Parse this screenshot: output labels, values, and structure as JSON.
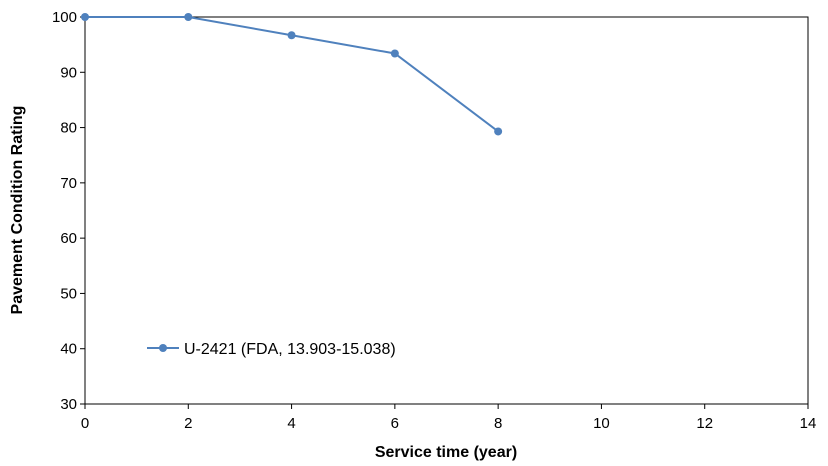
{
  "chart_data": {
    "type": "line",
    "title": "",
    "xlabel": "Service time (year)",
    "ylabel": "Pavement Condition Rating",
    "xlim": [
      0,
      14
    ],
    "ylim": [
      30,
      100
    ],
    "x_ticks": [
      0,
      2,
      4,
      6,
      8,
      10,
      12,
      14
    ],
    "y_ticks": [
      30,
      40,
      50,
      60,
      70,
      80,
      90,
      100
    ],
    "grid": false,
    "legend_position": "lower-left",
    "series": [
      {
        "name": "U-2421 (FDA, 13.903-15.038)",
        "color": "#4f81bd",
        "x": [
          0,
          2,
          4,
          6,
          8
        ],
        "y": [
          100,
          100,
          96.7,
          93.4,
          79.3
        ]
      }
    ]
  }
}
